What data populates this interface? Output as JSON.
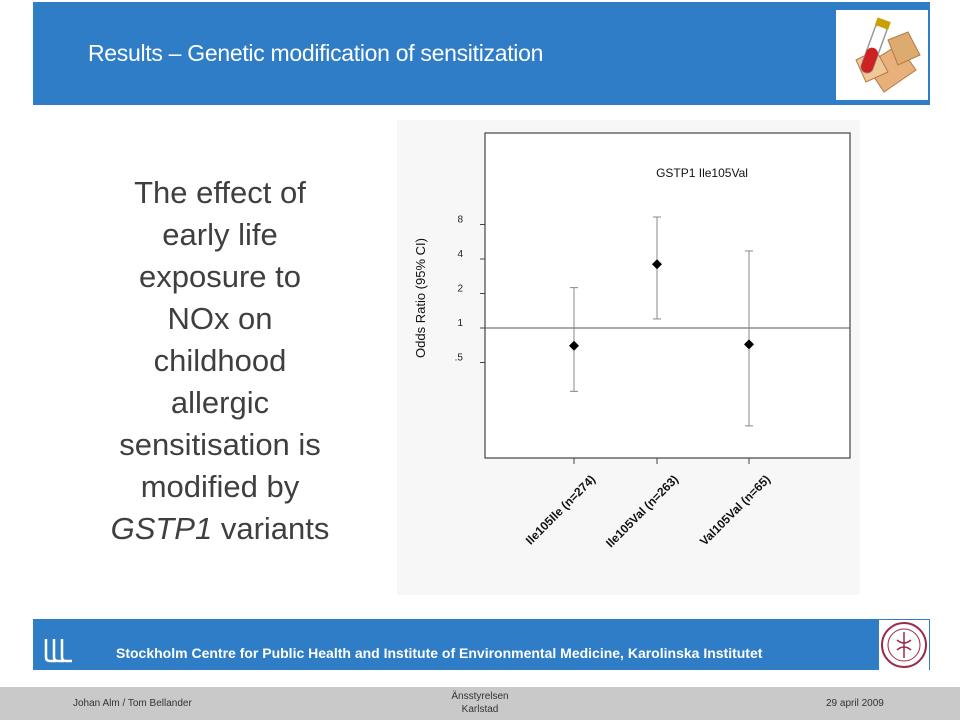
{
  "header": {
    "title": "Results – Genetic modification of sensitization",
    "logo_icon": "test-tube-icon"
  },
  "body_text": {
    "lines": [
      "The effect of",
      "early life",
      "exposure to",
      "NOx on",
      "childhood",
      "allergic",
      "sensitisation is",
      "modified by"
    ],
    "italic_word": "GSTP1",
    "last_suffix": " variants"
  },
  "footer": {
    "institute": "Stockholm Centre for Public Health and Institute of Environmental Medicine, Karolinska Institutet",
    "logo_icon": "sll-logo-icon",
    "seal_icon": "karolinska-seal-icon"
  },
  "bottom": {
    "authors": "Johan Alm / Tom Bellander",
    "org_line1": "Änsstyrelsen",
    "org_line2": "Karlstad",
    "date": "29 april 2009"
  },
  "colors": {
    "header_blue": "#2f7dc6",
    "text_gray": "#3f3f3f"
  },
  "chart_data": {
    "type": "scatter",
    "title": "GSTP1 Ile105Val",
    "ylabel": "Odds Ratio (95% CI)",
    "xlabel": "",
    "y_scale": "log",
    "yticks": [
      0.5,
      1,
      2,
      4,
      8
    ],
    "ytick_labels": [
      ".5",
      "1",
      "2",
      "4",
      "8"
    ],
    "reference_line": 1,
    "categories": [
      "Ile105Ile (n=274)",
      "Ile105Val (n=263)",
      "Val105Val (n=65)"
    ],
    "points": [
      {
        "label": "Ile105Ile (n=274)",
        "or": 0.7,
        "lower": 0.28,
        "upper": 2.25
      },
      {
        "label": "Ile105Val (n=263)",
        "or": 3.6,
        "lower": 1.2,
        "upper": 9.3
      },
      {
        "label": "Val105Val (n=65)",
        "or": 0.72,
        "lower": 0.14,
        "upper": 4.7
      }
    ]
  }
}
